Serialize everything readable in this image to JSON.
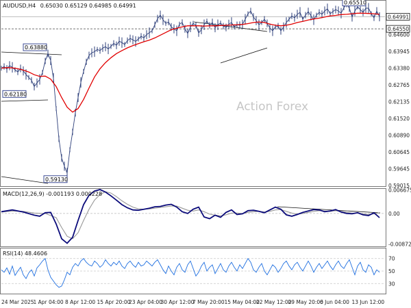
{
  "chart_data": [
    {
      "type": "ohlc",
      "title": "AUDUSD,H4",
      "ohlc_readout": "0.65030 0.65129 0.64985 0.64991",
      "watermark": "Action Forex",
      "ylim": [
        0.5885,
        0.6555
      ],
      "price_ticks": [
        "0.65255",
        "0.64600",
        "0.63945",
        "0.63380",
        "0.62765",
        "0.62135",
        "0.61520",
        "0.60890",
        "0.60645",
        "0.59645",
        "0.59015"
      ],
      "x_ticks": [
        "24 Mar 2025",
        "1 Apr 04:00",
        "8 Apr 12:00",
        "15 Apr 20:00",
        "23 Apr 04:00",
        "30 Apr 12:00",
        "7 May 20:00",
        "15 May 04:00",
        "22 May 12:00",
        "29 May 20:00",
        "6 Jun 04:00",
        "13 Jun 12:00"
      ],
      "current_price": "0.64991",
      "current_price_value": 0.64991,
      "level_line": "0.64550",
      "level_line_value": 0.6455,
      "annotations": [
        {
          "label": "0.63880",
          "value": 0.6388
        },
        {
          "label": "0.62180",
          "value": 0.6218
        },
        {
          "label": "0.59130",
          "value": 0.5913
        },
        {
          "label": "0.65510",
          "value": 0.6551
        }
      ],
      "series": [
        {
          "name": "AUDUSD H4",
          "color": "#2d3f7a",
          "x": [
            0,
            4,
            8,
            12,
            16,
            20,
            24,
            28,
            32,
            36,
            40,
            44,
            48,
            52,
            56,
            60,
            64,
            68,
            72,
            76,
            80,
            84,
            88,
            92,
            96,
            100,
            104,
            108,
            112,
            116,
            120,
            124,
            128,
            132,
            136,
            140,
            144,
            148,
            152,
            156,
            160,
            164,
            168,
            172,
            176,
            180,
            184,
            188,
            192,
            196,
            200,
            204,
            208,
            212,
            216,
            220,
            224,
            228,
            232,
            236,
            240,
            244,
            248,
            252,
            256,
            260,
            264,
            268,
            272,
            276,
            280,
            284,
            288,
            292,
            296,
            300,
            304,
            308,
            312,
            316,
            320,
            324,
            328,
            332,
            336,
            340,
            344,
            348,
            352,
            356,
            360,
            364,
            368,
            372,
            376,
            380,
            384,
            388,
            392,
            396,
            400,
            404,
            408,
            412,
            416,
            420,
            424,
            428,
            432,
            436,
            440,
            444,
            448,
            452,
            456,
            460,
            464,
            468,
            472,
            476,
            480,
            484,
            488,
            492,
            496,
            500,
            504,
            508,
            512,
            516,
            520,
            524,
            528,
            532,
            536,
            540,
            544,
            548,
            552
          ],
          "close": [
            0.6312,
            0.6318,
            0.6309,
            0.6321,
            0.6315,
            0.6306,
            0.6298,
            0.6311,
            0.6302,
            0.6289,
            0.6278,
            0.6268,
            0.6245,
            0.6258,
            0.6271,
            0.6296,
            0.6338,
            0.6365,
            0.634,
            0.6275,
            0.6165,
            0.6055,
            0.5985,
            0.5955,
            0.593,
            0.6015,
            0.608,
            0.615,
            0.6205,
            0.626,
            0.63,
            0.6335,
            0.6358,
            0.6368,
            0.6372,
            0.638,
            0.6376,
            0.6385,
            0.639,
            0.6382,
            0.6391,
            0.6402,
            0.6395,
            0.641,
            0.6405,
            0.6398,
            0.6412,
            0.642,
            0.6415,
            0.6409,
            0.6418,
            0.6428,
            0.6422,
            0.6434,
            0.6441,
            0.6448,
            0.647,
            0.6492,
            0.6505,
            0.6488,
            0.6475,
            0.648,
            0.6462,
            0.6455,
            0.6448,
            0.6472,
            0.6478,
            0.6455,
            0.6438,
            0.6462,
            0.6475,
            0.6468,
            0.644,
            0.6452,
            0.647,
            0.6483,
            0.6468,
            0.6478,
            0.6459,
            0.647,
            0.6476,
            0.6465,
            0.646,
            0.6472,
            0.6478,
            0.6462,
            0.647,
            0.6468,
            0.6472,
            0.649,
            0.651,
            0.652,
            0.6498,
            0.6485,
            0.647,
            0.6478,
            0.649,
            0.6475,
            0.6458,
            0.6448,
            0.6462,
            0.6465,
            0.6448,
            0.6462,
            0.6478,
            0.649,
            0.6502,
            0.6495,
            0.6508,
            0.6515,
            0.649,
            0.6505,
            0.6518,
            0.6502,
            0.6488,
            0.6505,
            0.6515,
            0.6508,
            0.652,
            0.6528,
            0.651,
            0.6518,
            0.6525,
            0.652,
            0.6512,
            0.6532,
            0.6545,
            0.653,
            0.6498,
            0.652,
            0.6535,
            0.6525,
            0.6515,
            0.653,
            0.653,
            0.651,
            0.6495,
            0.652,
            0.6499
          ]
        },
        {
          "name": "Moving average",
          "color": "#e10000",
          "x": [
            0,
            8,
            16,
            24,
            32,
            40,
            48,
            56,
            64,
            72,
            80,
            88,
            96,
            104,
            112,
            120,
            128,
            136,
            144,
            152,
            160,
            168,
            176,
            184,
            192,
            200,
            208,
            216,
            224,
            232,
            240,
            248,
            256,
            264,
            272,
            280,
            288,
            296,
            304,
            312,
            320,
            328,
            336,
            344,
            352,
            360,
            368,
            376,
            384,
            392,
            400,
            408,
            416,
            424,
            432,
            440,
            448,
            456,
            464,
            472,
            480,
            488,
            496,
            504,
            512,
            520,
            528,
            536,
            544,
            552
          ],
          "values": [
            0.6312,
            0.6314,
            0.6313,
            0.631,
            0.6305,
            0.6298,
            0.6288,
            0.6282,
            0.6283,
            0.6272,
            0.6245,
            0.6205,
            0.617,
            0.6152,
            0.6165,
            0.6198,
            0.624,
            0.628,
            0.631,
            0.6332,
            0.635,
            0.6365,
            0.6376,
            0.6386,
            0.6394,
            0.6401,
            0.6408,
            0.6414,
            0.6422,
            0.6432,
            0.6442,
            0.6452,
            0.6457,
            0.6462,
            0.6466,
            0.6466,
            0.6466,
            0.6465,
            0.6466,
            0.6466,
            0.6467,
            0.6468,
            0.6469,
            0.647,
            0.6471,
            0.6474,
            0.6478,
            0.648,
            0.6478,
            0.6472,
            0.6468,
            0.6466,
            0.6468,
            0.6472,
            0.6478,
            0.6482,
            0.6487,
            0.6491,
            0.6494,
            0.6498,
            0.6502,
            0.6504,
            0.6507,
            0.6508,
            0.651,
            0.6512,
            0.6512,
            0.6511,
            0.651,
            0.6508
          ]
        }
      ]
    },
    {
      "type": "line",
      "title": "MACD(12,26,9) -0.001193 0.000228",
      "ylim": [
        -0.0092,
        0.0068
      ],
      "ticks": [
        {
          "label": "0.006675",
          "value": 0.006675
        },
        {
          "label": "0.00",
          "value": 0
        },
        {
          "label": "-0.008724",
          "value": -0.008724
        }
      ],
      "series": [
        {
          "name": "MACD",
          "color": "#0a0a7a",
          "x": [
            0,
            16,
            32,
            48,
            56,
            64,
            72,
            80,
            88,
            96,
            104,
            112,
            120,
            128,
            136,
            144,
            152,
            160,
            168,
            176,
            184,
            192,
            200,
            208,
            216,
            224,
            232,
            240,
            248,
            256,
            264,
            272,
            280,
            288,
            296,
            304,
            312,
            320,
            328,
            336,
            344,
            352,
            360,
            368,
            376,
            384,
            392,
            400,
            408,
            416,
            424,
            432,
            440,
            448,
            456,
            464,
            472,
            480,
            488,
            496,
            504,
            512,
            520,
            528,
            536,
            544,
            552
          ],
          "values": [
            0.0005,
            0.001,
            0.0004,
            -0.0005,
            -0.0008,
            0.0002,
            0.0003,
            -0.003,
            -0.0072,
            -0.0085,
            -0.0068,
            -0.002,
            0.0025,
            0.0052,
            0.0064,
            0.0068,
            0.0061,
            0.005,
            0.0038,
            0.0025,
            0.0016,
            0.001,
            0.0009,
            0.0012,
            0.0015,
            0.0019,
            0.002,
            0.0024,
            0.0026,
            0.0018,
            0.0005,
            0.0,
            0.0012,
            0.0018,
            -0.001,
            -0.0015,
            -0.0005,
            -0.0011,
            0.0003,
            0.001,
            -0.0003,
            -0.0001,
            0.0008,
            0.0009,
            0.0006,
            0.0002,
            0.001,
            0.0018,
            0.0012,
            -0.0004,
            -0.0008,
            -0.0003,
            0.0003,
            0.0007,
            0.0011,
            0.001,
            0.0005,
            0.0007,
            0.0011,
            0.0004,
            0.0,
            -0.0001,
            0.0002,
            -0.0004,
            -0.0006,
            0.0002,
            -0.0012
          ]
        },
        {
          "name": "Signal",
          "color": "#999999",
          "x": [
            0,
            16,
            32,
            48,
            64,
            80,
            88,
            96,
            104,
            112,
            120,
            128,
            136,
            144,
            152,
            160,
            168,
            176,
            184,
            192,
            200,
            208,
            216,
            224,
            232,
            240,
            248,
            256,
            264,
            272,
            280,
            288,
            296,
            304,
            312,
            320,
            328,
            336,
            344,
            352,
            360,
            368,
            376,
            384,
            392,
            400,
            408,
            416,
            424,
            432,
            440,
            448,
            456,
            464,
            472,
            480,
            488,
            496,
            504,
            512,
            520,
            528,
            536,
            544,
            552
          ],
          "values": [
            0.0004,
            0.0007,
            0.0006,
            0.0001,
            0.0,
            -0.0012,
            -0.004,
            -0.0065,
            -0.0072,
            -0.0055,
            -0.002,
            0.0012,
            0.0038,
            0.0054,
            0.0062,
            0.0058,
            0.0048,
            0.0036,
            0.0026,
            0.0018,
            0.0013,
            0.0012,
            0.0013,
            0.0015,
            0.0017,
            0.0019,
            0.0021,
            0.0021,
            0.0015,
            0.0009,
            0.0007,
            0.001,
            0.0005,
            -0.0002,
            -0.0005,
            -0.0007,
            -0.0004,
            0.0001,
            0.0001,
            0.0,
            0.0003,
            0.0005,
            0.0006,
            0.0004,
            0.0006,
            0.001,
            0.0011,
            0.0006,
            0.0001,
            -0.0002,
            0.0,
            0.0003,
            0.0006,
            0.0008,
            0.0007,
            0.0006,
            0.0008,
            0.0006,
            0.0003,
            0.0001,
            0.0001,
            -0.0001,
            -0.0003,
            -0.0001,
            0.0002
          ]
        }
      ]
    },
    {
      "type": "line",
      "title": "RSI(14) 48.4606",
      "ylim": [
        0,
        100
      ],
      "ticks": [
        {
          "label": "70",
          "value": 70
        },
        {
          "label": "50",
          "value": 50
        },
        {
          "label": "30",
          "value": 30
        }
      ],
      "series": [
        {
          "name": "RSI(14)",
          "color": "#1f6fe0",
          "x": [
            0,
            4,
            8,
            12,
            16,
            20,
            24,
            28,
            32,
            36,
            40,
            44,
            48,
            52,
            56,
            60,
            64,
            68,
            72,
            76,
            80,
            84,
            88,
            92,
            96,
            100,
            104,
            108,
            112,
            116,
            120,
            124,
            128,
            132,
            136,
            140,
            144,
            148,
            152,
            156,
            160,
            164,
            168,
            172,
            176,
            180,
            184,
            188,
            192,
            196,
            200,
            204,
            208,
            212,
            216,
            220,
            224,
            228,
            232,
            236,
            240,
            244,
            248,
            252,
            256,
            260,
            264,
            268,
            272,
            276,
            280,
            284,
            288,
            292,
            296,
            300,
            304,
            308,
            312,
            316,
            320,
            324,
            328,
            332,
            336,
            340,
            344,
            348,
            352,
            356,
            360,
            364,
            368,
            372,
            376,
            380,
            384,
            388,
            392,
            396,
            400,
            404,
            408,
            412,
            416,
            420,
            424,
            428,
            432,
            436,
            440,
            444,
            448,
            452,
            456,
            460,
            464,
            468,
            472,
            476,
            480,
            484,
            488,
            492,
            496,
            500,
            504,
            508,
            512,
            516,
            520,
            524,
            528,
            532,
            536,
            540,
            544,
            548,
            552
          ],
          "values": [
            52,
            48,
            55,
            45,
            58,
            43,
            50,
            56,
            44,
            38,
            47,
            52,
            42,
            55,
            60,
            66,
            70,
            52,
            40,
            34,
            28,
            24,
            26,
            36,
            48,
            44,
            56,
            62,
            58,
            66,
            70,
            64,
            60,
            58,
            66,
            62,
            56,
            60,
            68,
            62,
            58,
            64,
            60,
            66,
            58,
            54,
            62,
            66,
            60,
            56,
            64,
            58,
            60,
            66,
            62,
            58,
            64,
            68,
            60,
            52,
            46,
            58,
            50,
            44,
            56,
            62,
            52,
            48,
            60,
            66,
            54,
            42,
            48,
            58,
            64,
            50,
            56,
            60,
            46,
            54,
            62,
            52,
            48,
            58,
            64,
            56,
            50,
            60,
            54,
            62,
            70,
            64,
            52,
            48,
            56,
            62,
            50,
            44,
            52,
            60,
            56,
            48,
            54,
            62,
            66,
            58,
            52,
            60,
            64,
            56,
            50,
            58,
            66,
            58,
            48,
            56,
            62,
            54,
            60,
            66,
            58,
            52,
            60,
            66,
            58,
            54,
            62,
            68,
            56,
            44,
            58,
            64,
            52,
            48,
            60,
            56,
            44,
            52,
            48
          ]
        }
      ]
    }
  ]
}
